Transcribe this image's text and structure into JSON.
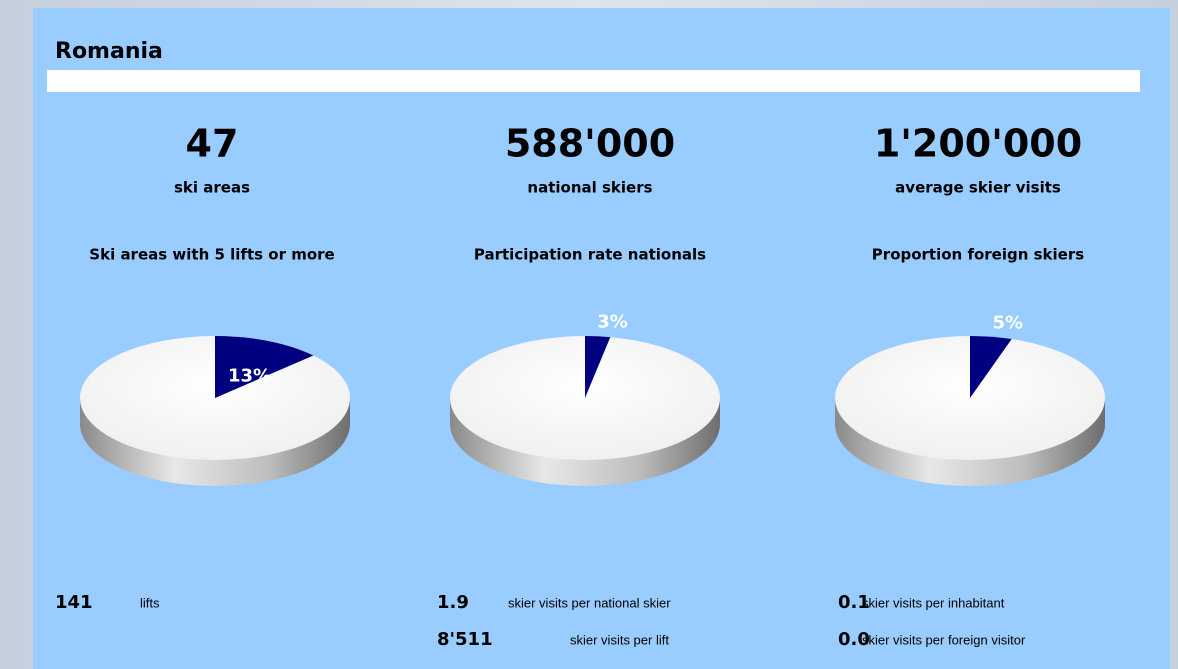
{
  "title": "Romania",
  "kpis": [
    {
      "value": "47",
      "label": "ski areas"
    },
    {
      "value": "588'000",
      "label": "national skiers"
    },
    {
      "value": "1'200'000",
      "label": "average skier visits"
    }
  ],
  "chart_data": [
    {
      "type": "pie",
      "title": "Ski areas with 5 lifts or more",
      "values": [
        13
      ],
      "value_labels": [
        "13%"
      ],
      "color": "#000080",
      "rest_color": "#ffffff"
    },
    {
      "type": "pie",
      "title": "Participation rate nationals",
      "values": [
        3
      ],
      "value_labels": [
        "3%"
      ],
      "color": "#000080",
      "rest_color": "#ffffff"
    },
    {
      "type": "pie",
      "title": "Proportion foreign skiers",
      "values": [
        5
      ],
      "value_labels": [
        "5%"
      ],
      "color": "#000080",
      "rest_color": "#ffffff"
    }
  ],
  "stats": [
    [
      {
        "value": "141",
        "label": "lifts"
      }
    ],
    [
      {
        "value": "1.9",
        "label": "skier visits per national skier"
      },
      {
        "value": "8'511",
        "label": "skier visits per lift"
      }
    ],
    [
      {
        "value": "0.1",
        "label": "skier visits per inhabitant"
      },
      {
        "value": "0.0",
        "label": "skier visits per foreign visitor"
      }
    ]
  ]
}
